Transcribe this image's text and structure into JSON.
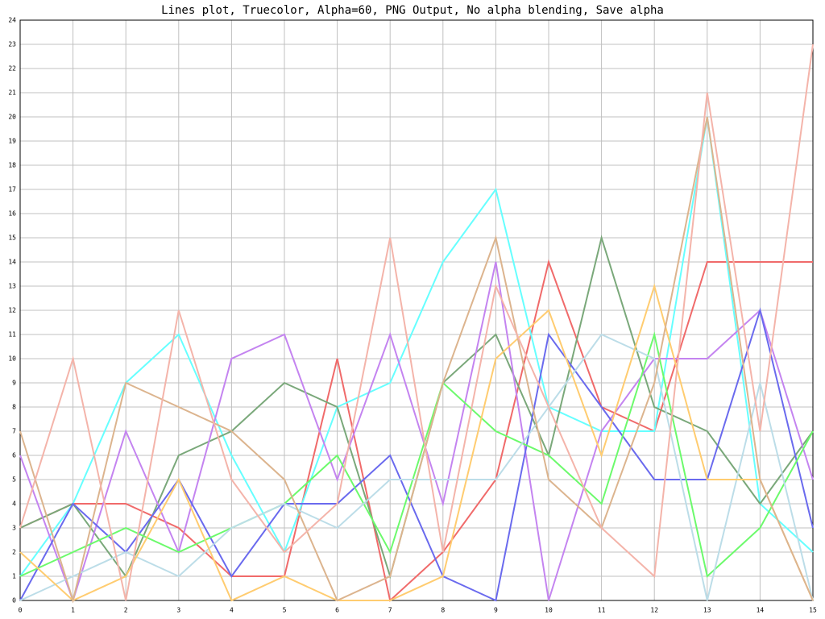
{
  "chart_data": {
    "type": "line",
    "title": "Lines plot, Truecolor, Alpha=60, PNG Output, No alpha blending, Save alpha",
    "x": [
      0,
      1,
      2,
      3,
      4,
      5,
      6,
      7,
      8,
      9,
      10,
      11,
      12,
      13,
      14,
      15
    ],
    "xlim": [
      0,
      15
    ],
    "xticks": [
      0,
      1,
      2,
      3,
      4,
      5,
      6,
      7,
      8,
      9,
      10,
      11,
      12,
      13,
      14,
      15
    ],
    "ylim": [
      0,
      24
    ],
    "yticks": [
      0,
      1,
      2,
      3,
      4,
      5,
      6,
      7,
      8,
      9,
      10,
      11,
      12,
      13,
      14,
      15,
      16,
      17,
      18,
      19,
      20,
      21,
      22,
      23,
      24
    ],
    "grid": true,
    "series": [
      {
        "color": "#f06a6a",
        "values": [
          3,
          4,
          4,
          3,
          1,
          1,
          10,
          0,
          2,
          5,
          14,
          8,
          7,
          14,
          14,
          14
        ]
      },
      {
        "color": "#66ffff",
        "values": [
          1,
          4,
          9,
          11,
          6,
          2,
          8,
          9,
          14,
          17,
          8,
          7,
          7,
          20,
          4,
          2
        ]
      },
      {
        "color": "#7aa87a",
        "values": [
          3,
          4,
          1,
          6,
          7,
          9,
          8,
          1,
          9,
          11,
          6,
          15,
          8,
          7,
          4,
          7
        ]
      },
      {
        "color": "#c484f0",
        "values": [
          6,
          0,
          7,
          2,
          10,
          11,
          5,
          11,
          4,
          14,
          0,
          7,
          10,
          10,
          12,
          5
        ]
      },
      {
        "color": "#6a6aee",
        "values": [
          0,
          4,
          2,
          5,
          1,
          4,
          4,
          6,
          1,
          0,
          11,
          8,
          5,
          5,
          12,
          3
        ]
      },
      {
        "color": "#6cfa6c",
        "values": [
          1,
          2,
          3,
          2,
          3,
          4,
          6,
          2,
          9,
          7,
          6,
          4,
          11,
          1,
          3,
          7
        ]
      },
      {
        "color": "#bcdde8",
        "values": [
          0,
          1,
          2,
          1,
          3,
          4,
          3,
          5,
          5,
          5,
          8,
          11,
          10,
          0,
          9,
          0
        ]
      },
      {
        "color": "#ffcc70",
        "values": [
          2,
          0,
          1,
          5,
          0,
          1,
          0,
          0,
          1,
          10,
          12,
          6,
          13,
          5,
          5,
          0
        ]
      },
      {
        "color": "#dcb48e",
        "values": [
          7,
          0,
          9,
          8,
          7,
          5,
          0,
          1,
          9,
          15,
          5,
          3,
          9,
          20,
          5,
          0
        ]
      },
      {
        "color": "#f4b4aa",
        "values": [
          3,
          10,
          0,
          12,
          5,
          2,
          4,
          15,
          2,
          13,
          8,
          3,
          1,
          21,
          7,
          23
        ]
      }
    ]
  }
}
